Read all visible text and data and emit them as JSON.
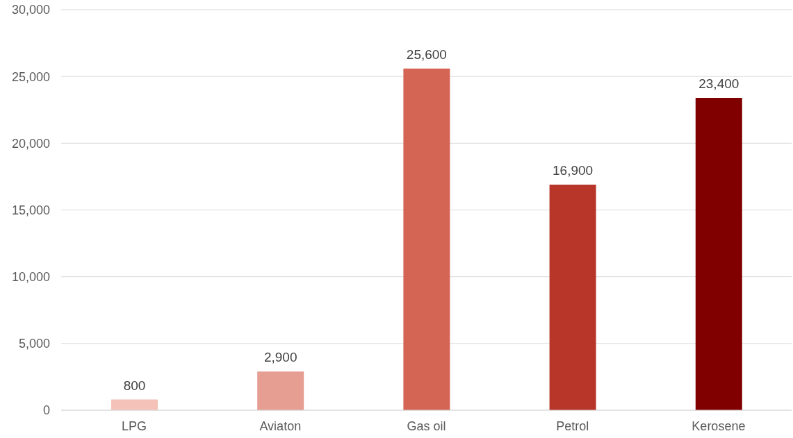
{
  "chart_data": {
    "type": "bar",
    "categories": [
      "LPG",
      "Aviaton",
      "Gas oil",
      "Petrol",
      "Kerosene"
    ],
    "values": [
      800,
      2900,
      25600,
      16900,
      23400
    ],
    "value_labels": [
      "800",
      "2,900",
      "25,600",
      "16,900",
      "23,400"
    ],
    "colors": [
      "#f4c2b8",
      "#e69d92",
      "#d46555",
      "#b8352a",
      "#800000"
    ],
    "ylim": [
      0,
      30000
    ],
    "yticks": [
      0,
      {
        "value": 5000,
        "label": "5,000"
      },
      {
        "value": 10000,
        "label": "10,000"
      },
      {
        "value": 15000,
        "label": "15,000"
      },
      {
        "value": 20000,
        "label": "20,000"
      },
      {
        "value": 25000,
        "label": "25,000"
      },
      {
        "value": 30000,
        "label": "30,000"
      }
    ],
    "grid": "y"
  }
}
